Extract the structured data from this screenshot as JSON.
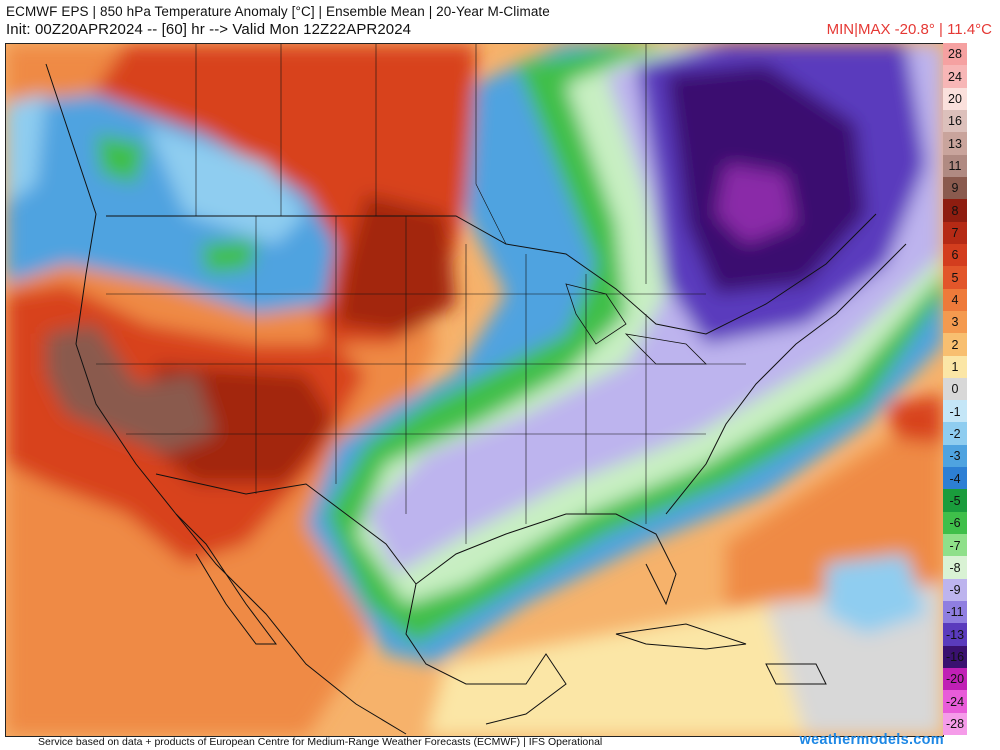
{
  "header": {
    "title": "ECMWF EPS | 850 hPa Temperature Anomaly [°C] | Ensemble Mean | 20-Year M-Climate",
    "init_line": "Init: 00Z20APR2024 -- [60] hr --> Valid Mon 12Z22APR2024",
    "minmax": "MIN|MAX -20.8° | 11.4°C"
  },
  "colorbar": {
    "levels": [
      {
        "label": "28",
        "color": "#f5a1a1"
      },
      {
        "label": "24",
        "color": "#f7b6b6"
      },
      {
        "label": "20",
        "color": "#fae0dc"
      },
      {
        "label": "16",
        "color": "#dcc0bb"
      },
      {
        "label": "13",
        "color": "#c9a49c"
      },
      {
        "label": "11",
        "color": "#b08a82"
      },
      {
        "label": "9",
        "color": "#8a5a4e"
      },
      {
        "label": "8",
        "color": "#8e1d10"
      },
      {
        "label": "7",
        "color": "#b52a15"
      },
      {
        "label": "6",
        "color": "#d33d1e"
      },
      {
        "label": "5",
        "color": "#e2562a"
      },
      {
        "label": "4",
        "color": "#ee7a3a"
      },
      {
        "label": "3",
        "color": "#f49a4f"
      },
      {
        "label": "2",
        "color": "#f8bf70"
      },
      {
        "label": "1",
        "color": "#fbe6a6"
      },
      {
        "label": "0",
        "color": "#d8d8d8"
      },
      {
        "label": "-1",
        "color": "#c4e6f7"
      },
      {
        "label": "-2",
        "color": "#8fcdf0"
      },
      {
        "label": "-3",
        "color": "#4fa3e0"
      },
      {
        "label": "-4",
        "color": "#2d7fd4"
      },
      {
        "label": "-5",
        "color": "#1a9c3c"
      },
      {
        "label": "-6",
        "color": "#3fbf4a"
      },
      {
        "label": "-7",
        "color": "#8fe08a"
      },
      {
        "label": "-8",
        "color": "#d9f2d4"
      },
      {
        "label": "-9",
        "color": "#bdb4ee"
      },
      {
        "label": "-11",
        "color": "#8f7ee0"
      },
      {
        "label": "-13",
        "color": "#5a3bbd"
      },
      {
        "label": "-16",
        "color": "#3a1170"
      },
      {
        "label": "-20",
        "color": "#c020b5"
      },
      {
        "label": "-24",
        "color": "#e85cd9"
      },
      {
        "label": "-28",
        "color": "#f59ce9"
      }
    ]
  },
  "map": {
    "field_colors": {
      "background": "#f6b26b",
      "warm_orange": "#ef8a45",
      "warm_red": "#d8431f",
      "dark_red": "#a3250f",
      "brown": "#8a5a4e",
      "light_blue": "#8fcdf0",
      "blue": "#4fa3e0",
      "green": "#3fbf4a",
      "light_green": "#c8efc2",
      "lavender": "#bdb4ee",
      "purple": "#5a3bbd",
      "dark_purple": "#3a1170",
      "magenta": "#8a2aa8",
      "gray": "#d8d8d8",
      "yellow": "#fbe6a6"
    }
  },
  "footer": {
    "credit": "Service based on data + products of European Centre for Medium-Range Weather Forecasts (ECMWF) | IFS Operational",
    "brand": "weathermodels.com"
  }
}
